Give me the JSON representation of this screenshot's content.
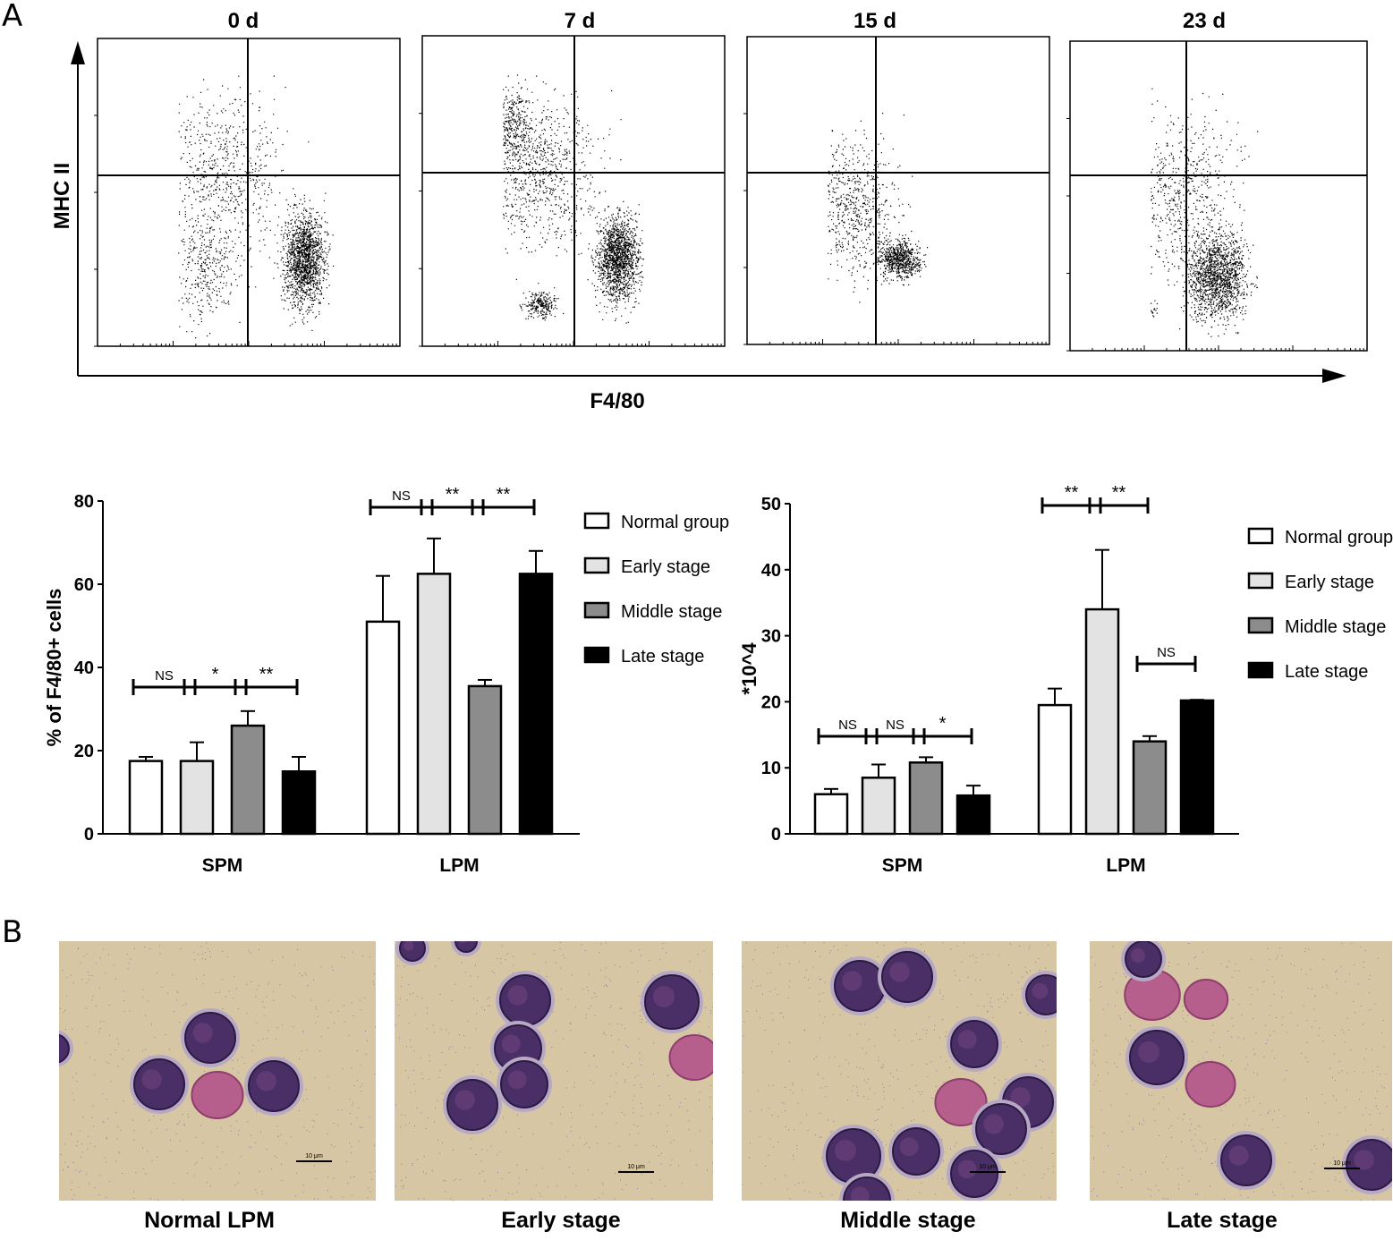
{
  "panel_a": {
    "letter": "A",
    "timepoints": [
      "0 d",
      "7 d",
      "15 d",
      "23 d"
    ],
    "y_axis_label": "MHC II",
    "x_axis_label": "F4/80"
  },
  "panel_b": {
    "letter": "B",
    "captions": [
      "Normal LPM",
      "Early stage",
      "Middle stage",
      "Late stage"
    ],
    "scale_bar_label": "10 μm"
  },
  "legend": [
    "Normal group",
    "Early stage",
    "Middle stage",
    "Late stage"
  ],
  "colors": {
    "normal": "#ffffff",
    "early": "#e3e3e3",
    "middle": "#8c8c8c",
    "late": "#000000"
  },
  "chart_data": [
    {
      "type": "bar",
      "categories": [
        "SPM",
        "LPM"
      ],
      "ylabel": "% of F4/80+ cells",
      "ylim": [
        0,
        80
      ],
      "yticks": [
        0,
        20,
        40,
        60,
        80
      ],
      "series": [
        {
          "name": "Normal group",
          "values": [
            17.5,
            51
          ],
          "errors": [
            1,
            11
          ]
        },
        {
          "name": "Early stage",
          "values": [
            17.5,
            62.5
          ],
          "errors": [
            4.5,
            8.5
          ]
        },
        {
          "name": "Middle stage",
          "values": [
            26,
            35.5
          ],
          "errors": [
            3.5,
            1.5
          ]
        },
        {
          "name": "Late stage",
          "values": [
            15,
            62.5
          ],
          "errors": [
            3.5,
            5.5
          ]
        }
      ],
      "significance": [
        {
          "category": "SPM",
          "pair": [
            0,
            1
          ],
          "label": "NS"
        },
        {
          "category": "SPM",
          "pair": [
            1,
            2
          ],
          "label": "*"
        },
        {
          "category": "SPM",
          "pair": [
            2,
            3
          ],
          "label": "**"
        },
        {
          "category": "LPM",
          "pair": [
            0,
            1
          ],
          "label": "NS"
        },
        {
          "category": "LPM",
          "pair": [
            1,
            2
          ],
          "label": "**"
        },
        {
          "category": "LPM",
          "pair": [
            2,
            3
          ],
          "label": "**"
        }
      ]
    },
    {
      "type": "bar",
      "categories": [
        "SPM",
        "LPM"
      ],
      "ylabel": "*10^4",
      "ylim": [
        0,
        50
      ],
      "yticks": [
        0,
        10,
        20,
        30,
        40,
        50
      ],
      "series": [
        {
          "name": "Normal group",
          "values": [
            6,
            19.5
          ],
          "errors": [
            0.8,
            2.5
          ]
        },
        {
          "name": "Early stage",
          "values": [
            8.5,
            34
          ],
          "errors": [
            2,
            9
          ]
        },
        {
          "name": "Middle stage",
          "values": [
            10.8,
            14
          ],
          "errors": [
            0.8,
            0.8
          ]
        },
        {
          "name": "Late stage",
          "values": [
            5.8,
            20.2
          ],
          "errors": [
            1.5,
            0.1
          ]
        }
      ],
      "significance": [
        {
          "category": "SPM",
          "pair": [
            0,
            1
          ],
          "label": "NS"
        },
        {
          "category": "SPM",
          "pair": [
            1,
            2
          ],
          "label": "NS"
        },
        {
          "category": "SPM",
          "pair": [
            2,
            3
          ],
          "label": "*"
        },
        {
          "category": "LPM",
          "pair": [
            0,
            1
          ],
          "label": "**"
        },
        {
          "category": "LPM",
          "pair": [
            1,
            2
          ],
          "label": "**"
        },
        {
          "category": "LPM",
          "pair": [
            2,
            3
          ],
          "label": "NS"
        }
      ]
    }
  ]
}
